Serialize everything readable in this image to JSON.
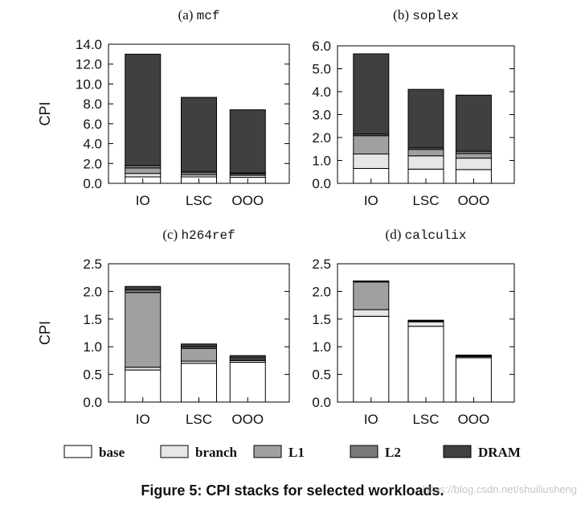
{
  "caption": "Figure 5:  CPI stacks for selected workloads.",
  "watermark": "https://blog.csdn.net/shuiliusheng",
  "colors": {
    "base": "#ffffff",
    "branch": "#e6e6e6",
    "L1": "#a0a0a0",
    "L2": "#7a7a7a",
    "DRAM": "#404040",
    "edge": "#000000"
  },
  "chart_data": [
    {
      "type": "bar",
      "stacked": true,
      "title_prefix": "(a)",
      "title_workload": "mcf",
      "ylabel": "CPI",
      "ylim": [
        0,
        14
      ],
      "yticks": [
        "0.0",
        "2.0",
        "4.0",
        "6.0",
        "8.0",
        "10.0",
        "12.0",
        "14.0"
      ],
      "yticks_values": [
        0,
        2,
        4,
        6,
        8,
        10,
        12,
        14
      ],
      "categories": [
        "IO",
        "LSC",
        "OOO"
      ],
      "series": [
        {
          "name": "base",
          "values": [
            0.65,
            0.65,
            0.6
          ]
        },
        {
          "name": "branch",
          "values": [
            0.35,
            0.2,
            0.2
          ]
        },
        {
          "name": "L1",
          "values": [
            0.55,
            0.2,
            0.15
          ]
        },
        {
          "name": "L2",
          "values": [
            0.25,
            0.15,
            0.1
          ]
        },
        {
          "name": "DRAM",
          "values": [
            11.2,
            7.45,
            6.35
          ]
        }
      ]
    },
    {
      "type": "bar",
      "stacked": true,
      "title_prefix": "(b)",
      "title_workload": "soplex",
      "ylabel": "",
      "ylim": [
        0,
        6
      ],
      "yticks": [
        "0.0",
        "1.0",
        "2.0",
        "3.0",
        "4.0",
        "5.0",
        "6.0"
      ],
      "yticks_values": [
        0,
        1,
        2,
        3,
        4,
        5,
        6
      ],
      "categories": [
        "IO",
        "LSC",
        "OOO"
      ],
      "series": [
        {
          "name": "base",
          "values": [
            0.65,
            0.62,
            0.6
          ]
        },
        {
          "name": "branch",
          "values": [
            0.63,
            0.58,
            0.5
          ]
        },
        {
          "name": "L1",
          "values": [
            0.8,
            0.28,
            0.2
          ]
        },
        {
          "name": "L2",
          "values": [
            0.07,
            0.07,
            0.1
          ]
        },
        {
          "name": "DRAM",
          "values": [
            3.5,
            2.55,
            2.45
          ]
        }
      ]
    },
    {
      "type": "bar",
      "stacked": true,
      "title_prefix": "(c)",
      "title_workload": "h264ref",
      "ylabel": "CPI",
      "ylim": [
        0,
        2.5
      ],
      "yticks": [
        "0.0",
        "0.5",
        "1.0",
        "1.5",
        "2.0",
        "2.5"
      ],
      "yticks_values": [
        0,
        0.5,
        1,
        1.5,
        2,
        2.5
      ],
      "categories": [
        "IO",
        "LSC",
        "OOO"
      ],
      "series": [
        {
          "name": "base",
          "values": [
            0.58,
            0.7,
            0.72
          ]
        },
        {
          "name": "branch",
          "values": [
            0.05,
            0.04,
            0.03
          ]
        },
        {
          "name": "L1",
          "values": [
            1.35,
            0.23,
            0.02
          ]
        },
        {
          "name": "L2",
          "values": [
            0.05,
            0.03,
            0.03
          ]
        },
        {
          "name": "DRAM",
          "values": [
            0.06,
            0.05,
            0.04
          ]
        }
      ]
    },
    {
      "type": "bar",
      "stacked": true,
      "title_prefix": "(d)",
      "title_workload": "calculix",
      "ylabel": "",
      "ylim": [
        0,
        2.5
      ],
      "yticks": [
        "0.0",
        "0.5",
        "1.0",
        "1.5",
        "2.0",
        "2.5"
      ],
      "yticks_values": [
        0,
        0.5,
        1,
        1.5,
        2,
        2.5
      ],
      "categories": [
        "IO",
        "LSC",
        "OOO"
      ],
      "series": [
        {
          "name": "base",
          "values": [
            1.55,
            1.37,
            0.8
          ]
        },
        {
          "name": "branch",
          "values": [
            0.12,
            0.08,
            0.02
          ]
        },
        {
          "name": "L1",
          "values": [
            0.5,
            0.01,
            0.01
          ]
        },
        {
          "name": "L2",
          "values": [
            0.01,
            0.01,
            0.01
          ]
        },
        {
          "name": "DRAM",
          "values": [
            0.01,
            0.01,
            0.01
          ]
        }
      ]
    }
  ],
  "legend": [
    {
      "key": "base",
      "label": "base"
    },
    {
      "key": "branch",
      "label": "branch"
    },
    {
      "key": "L1",
      "label": "L1"
    },
    {
      "key": "L2",
      "label": "L2"
    },
    {
      "key": "DRAM",
      "label": "DRAM"
    }
  ]
}
